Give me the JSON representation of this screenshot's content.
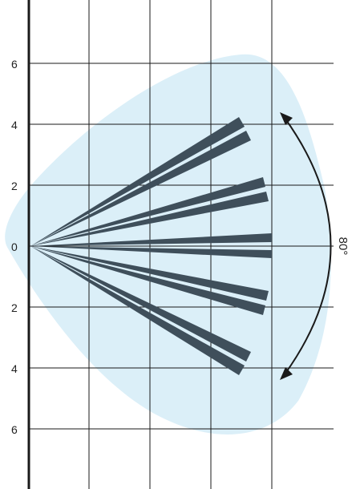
{
  "diagram": {
    "colors": {
      "coverage": "#dbeff8",
      "beam": "#3f4f5b",
      "grid": "#1a1a1a",
      "axis": "#1a1a1a",
      "arrow": "#1a1a1a"
    },
    "y_tick_labels": [
      "6",
      "4",
      "2",
      "0",
      "2",
      "4",
      "6"
    ],
    "angle_label": "80°",
    "beam_count": 10
  }
}
